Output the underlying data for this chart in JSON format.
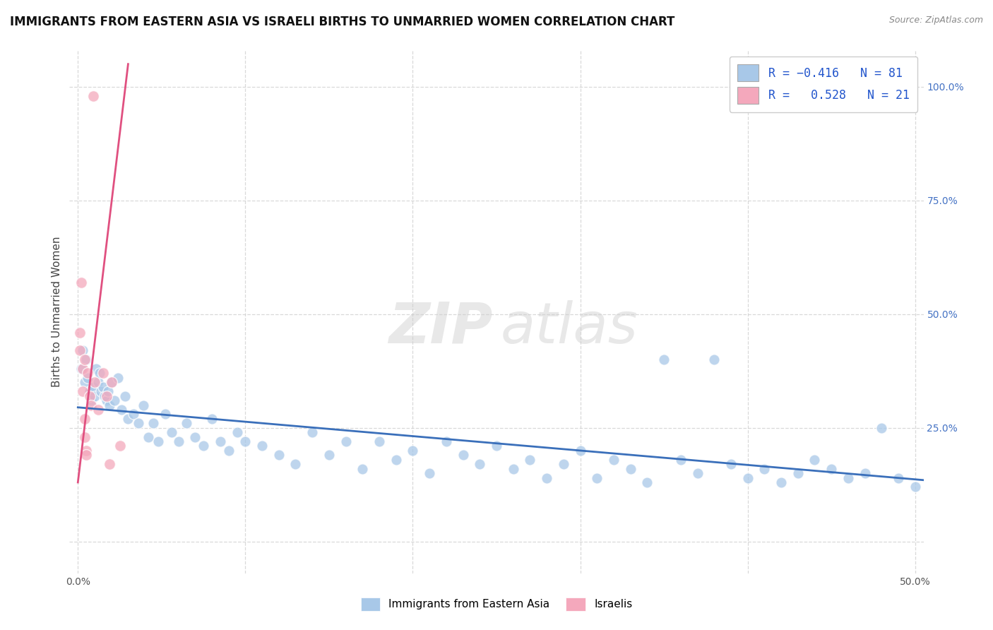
{
  "title": "IMMIGRANTS FROM EASTERN ASIA VS ISRAELI BIRTHS TO UNMARRIED WOMEN CORRELATION CHART",
  "source": "Source: ZipAtlas.com",
  "ylabel": "Births to Unmarried Women",
  "watermark_zip": "ZIP",
  "watermark_atlas": "atlas",
  "xlim": [
    -0.005,
    0.505
  ],
  "ylim": [
    -0.07,
    1.08
  ],
  "xtick_vals": [
    0.0,
    0.1,
    0.2,
    0.3,
    0.4,
    0.5
  ],
  "xticklabels": [
    "0.0%",
    "",
    "",
    "",
    "",
    "50.0%"
  ],
  "ytick_vals": [
    0.0,
    0.25,
    0.5,
    0.75,
    1.0
  ],
  "ytick_right_labels": [
    "",
    "25.0%",
    "50.0%",
    "75.0%",
    "100.0%"
  ],
  "blue_color": "#a8c8e8",
  "pink_color": "#f4a8bc",
  "blue_line_color": "#3a6fba",
  "pink_line_color": "#e05080",
  "blue_scatter": [
    [
      0.002,
      0.38
    ],
    [
      0.003,
      0.42
    ],
    [
      0.004,
      0.35
    ],
    [
      0.005,
      0.4
    ],
    [
      0.006,
      0.36
    ],
    [
      0.007,
      0.33
    ],
    [
      0.008,
      0.31
    ],
    [
      0.009,
      0.34
    ],
    [
      0.01,
      0.32
    ],
    [
      0.011,
      0.38
    ],
    [
      0.012,
      0.35
    ],
    [
      0.013,
      0.37
    ],
    [
      0.014,
      0.33
    ],
    [
      0.015,
      0.34
    ],
    [
      0.016,
      0.32
    ],
    [
      0.017,
      0.31
    ],
    [
      0.018,
      0.33
    ],
    [
      0.019,
      0.3
    ],
    [
      0.02,
      0.35
    ],
    [
      0.022,
      0.31
    ],
    [
      0.024,
      0.36
    ],
    [
      0.026,
      0.29
    ],
    [
      0.028,
      0.32
    ],
    [
      0.03,
      0.27
    ],
    [
      0.033,
      0.28
    ],
    [
      0.036,
      0.26
    ],
    [
      0.039,
      0.3
    ],
    [
      0.042,
      0.23
    ],
    [
      0.045,
      0.26
    ],
    [
      0.048,
      0.22
    ],
    [
      0.052,
      0.28
    ],
    [
      0.056,
      0.24
    ],
    [
      0.06,
      0.22
    ],
    [
      0.065,
      0.26
    ],
    [
      0.07,
      0.23
    ],
    [
      0.075,
      0.21
    ],
    [
      0.08,
      0.27
    ],
    [
      0.085,
      0.22
    ],
    [
      0.09,
      0.2
    ],
    [
      0.095,
      0.24
    ],
    [
      0.1,
      0.22
    ],
    [
      0.11,
      0.21
    ],
    [
      0.12,
      0.19
    ],
    [
      0.13,
      0.17
    ],
    [
      0.14,
      0.24
    ],
    [
      0.15,
      0.19
    ],
    [
      0.16,
      0.22
    ],
    [
      0.17,
      0.16
    ],
    [
      0.18,
      0.22
    ],
    [
      0.19,
      0.18
    ],
    [
      0.2,
      0.2
    ],
    [
      0.21,
      0.15
    ],
    [
      0.22,
      0.22
    ],
    [
      0.23,
      0.19
    ],
    [
      0.24,
      0.17
    ],
    [
      0.25,
      0.21
    ],
    [
      0.26,
      0.16
    ],
    [
      0.27,
      0.18
    ],
    [
      0.28,
      0.14
    ],
    [
      0.29,
      0.17
    ],
    [
      0.3,
      0.2
    ],
    [
      0.31,
      0.14
    ],
    [
      0.32,
      0.18
    ],
    [
      0.33,
      0.16
    ],
    [
      0.34,
      0.13
    ],
    [
      0.35,
      0.4
    ],
    [
      0.36,
      0.18
    ],
    [
      0.37,
      0.15
    ],
    [
      0.38,
      0.4
    ],
    [
      0.39,
      0.17
    ],
    [
      0.4,
      0.14
    ],
    [
      0.41,
      0.16
    ],
    [
      0.42,
      0.13
    ],
    [
      0.43,
      0.15
    ],
    [
      0.44,
      0.18
    ],
    [
      0.45,
      0.16
    ],
    [
      0.46,
      0.14
    ],
    [
      0.47,
      0.15
    ],
    [
      0.48,
      0.25
    ],
    [
      0.49,
      0.14
    ],
    [
      0.5,
      0.12
    ]
  ],
  "pink_scatter": [
    [
      0.001,
      0.46
    ],
    [
      0.001,
      0.42
    ],
    [
      0.002,
      0.57
    ],
    [
      0.003,
      0.38
    ],
    [
      0.003,
      0.33
    ],
    [
      0.004,
      0.4
    ],
    [
      0.004,
      0.23
    ],
    [
      0.004,
      0.27
    ],
    [
      0.005,
      0.2
    ],
    [
      0.005,
      0.19
    ],
    [
      0.006,
      0.37
    ],
    [
      0.007,
      0.32
    ],
    [
      0.008,
      0.3
    ],
    [
      0.009,
      0.98
    ],
    [
      0.01,
      0.35
    ],
    [
      0.012,
      0.29
    ],
    [
      0.015,
      0.37
    ],
    [
      0.017,
      0.32
    ],
    [
      0.019,
      0.17
    ],
    [
      0.02,
      0.35
    ],
    [
      0.025,
      0.21
    ]
  ],
  "blue_trend_x": [
    0.0,
    0.505
  ],
  "blue_trend_y": [
    0.295,
    0.135
  ],
  "pink_trend_x": [
    0.0,
    0.03
  ],
  "pink_trend_y": [
    0.13,
    1.05
  ],
  "grid_color": "#d0d0d0",
  "background_color": "#ffffff",
  "title_fontsize": 12,
  "source_fontsize": 9,
  "axis_label_fontsize": 11,
  "tick_fontsize": 10,
  "scatter_size_blue": 120,
  "scatter_size_pink": 130
}
